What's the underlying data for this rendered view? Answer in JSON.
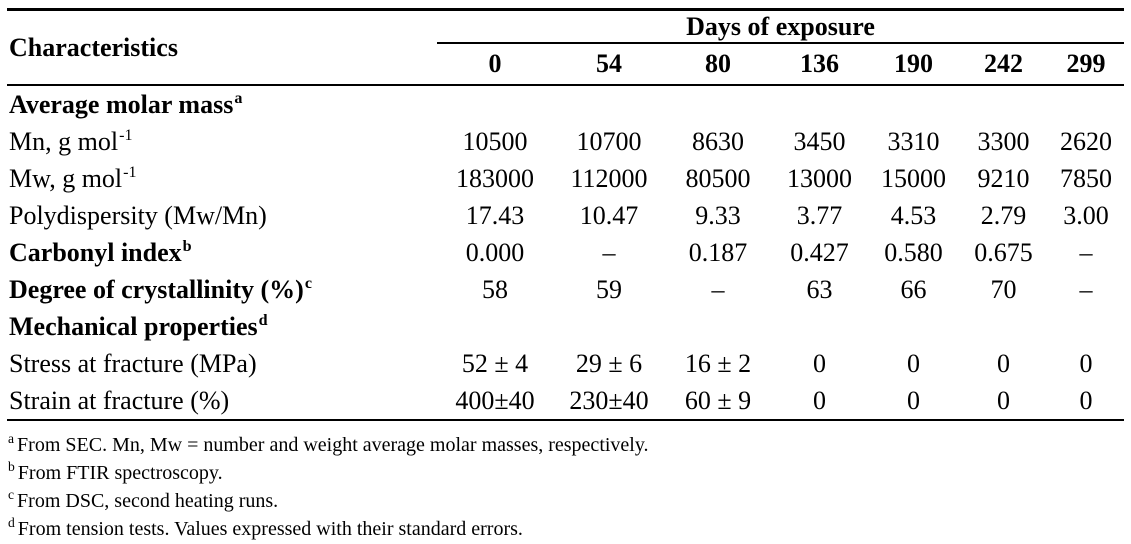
{
  "colors": {
    "background": "#ffffff",
    "text": "#000000",
    "rule": "#000000"
  },
  "table": {
    "corner_header": "Characteristics",
    "group_header": "Days of exposure",
    "columns": [
      "0",
      "54",
      "80",
      "136",
      "190",
      "242",
      "299"
    ],
    "rows": [
      {
        "label": "Average molar mass",
        "sup": "a",
        "bold": true,
        "values": [
          "",
          "",
          "",
          "",
          "",
          "",
          ""
        ]
      },
      {
        "label": "Mn, g mol",
        "sup": "-1",
        "bold": false,
        "values": [
          "10500",
          "10700",
          "8630",
          "3450",
          "3310",
          "3300",
          "2620"
        ]
      },
      {
        "label": "Mw, g mol",
        "sup": "-1",
        "bold": false,
        "values": [
          "183000",
          "112000",
          "80500",
          "13000",
          "15000",
          "9210",
          "7850"
        ]
      },
      {
        "label": "Polydispersity (Mw/Mn)",
        "sup": "",
        "bold": false,
        "values": [
          "17.43",
          "10.47",
          "9.33",
          "3.77",
          "4.53",
          "2.79",
          "3.00"
        ]
      },
      {
        "label": "Carbonyl index",
        "sup": "b",
        "bold": true,
        "values": [
          "0.000",
          "–",
          "0.187",
          "0.427",
          "0.580",
          "0.675",
          "–"
        ]
      },
      {
        "label": "Degree of crystallinity (%)",
        "sup": "c",
        "bold": true,
        "values": [
          "58",
          "59",
          "–",
          "63",
          "66",
          "70",
          "–"
        ]
      },
      {
        "label": "Mechanical properties",
        "sup": "d",
        "bold": true,
        "values": [
          "",
          "",
          "",
          "",
          "",
          "",
          ""
        ]
      },
      {
        "label": "Stress at fracture (MPa)",
        "sup": "",
        "bold": false,
        "values": [
          "52 ± 4",
          "29 ± 6",
          "16 ± 2",
          "0",
          "0",
          "0",
          "0"
        ]
      },
      {
        "label": "Strain at fracture (%)",
        "sup": "",
        "bold": false,
        "values": [
          "400±40",
          "230±40",
          "60 ± 9",
          "0",
          "0",
          "0",
          "0"
        ]
      }
    ]
  },
  "footnotes": [
    {
      "marker": "a",
      "text": "From SEC. Mn, Mw = number and weight average molar masses, respectively."
    },
    {
      "marker": "b",
      "text": "From FTIR spectroscopy."
    },
    {
      "marker": "c",
      "text": "From DSC, second heating runs."
    },
    {
      "marker": "d",
      "text": "From tension tests. Values expressed with their standard errors."
    }
  ]
}
